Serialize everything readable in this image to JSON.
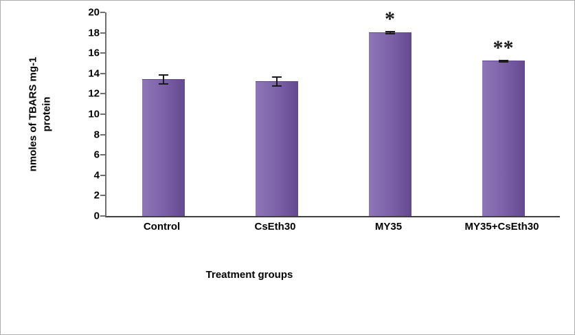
{
  "chart_data": {
    "type": "bar",
    "title": "",
    "categories": [
      "Control",
      "CsEth30",
      "MY35",
      "MY35+CsEth30"
    ],
    "values": [
      13.4,
      13.2,
      18.0,
      15.2
    ],
    "errors": [
      0.5,
      0.5,
      0.15,
      0.15
    ],
    "annotations": [
      "",
      "",
      "*",
      "**"
    ],
    "xlabel": "Treatment groups",
    "ylabel": "nmoles of TBARS mg-1 protein",
    "ylim": [
      0,
      20
    ],
    "yticks": [
      0,
      2,
      4,
      6,
      8,
      10,
      12,
      14,
      16,
      18,
      20
    ],
    "grid": false,
    "legend_position": "none",
    "bar_color": "#7A5FA6",
    "bar_color_light": "#8F76B7",
    "bar_color_dark": "#64498F",
    "axis_color": "#6e6e6e",
    "error_bar_color": "#1a1a1a",
    "annotation_color": "#1a1a1a"
  }
}
